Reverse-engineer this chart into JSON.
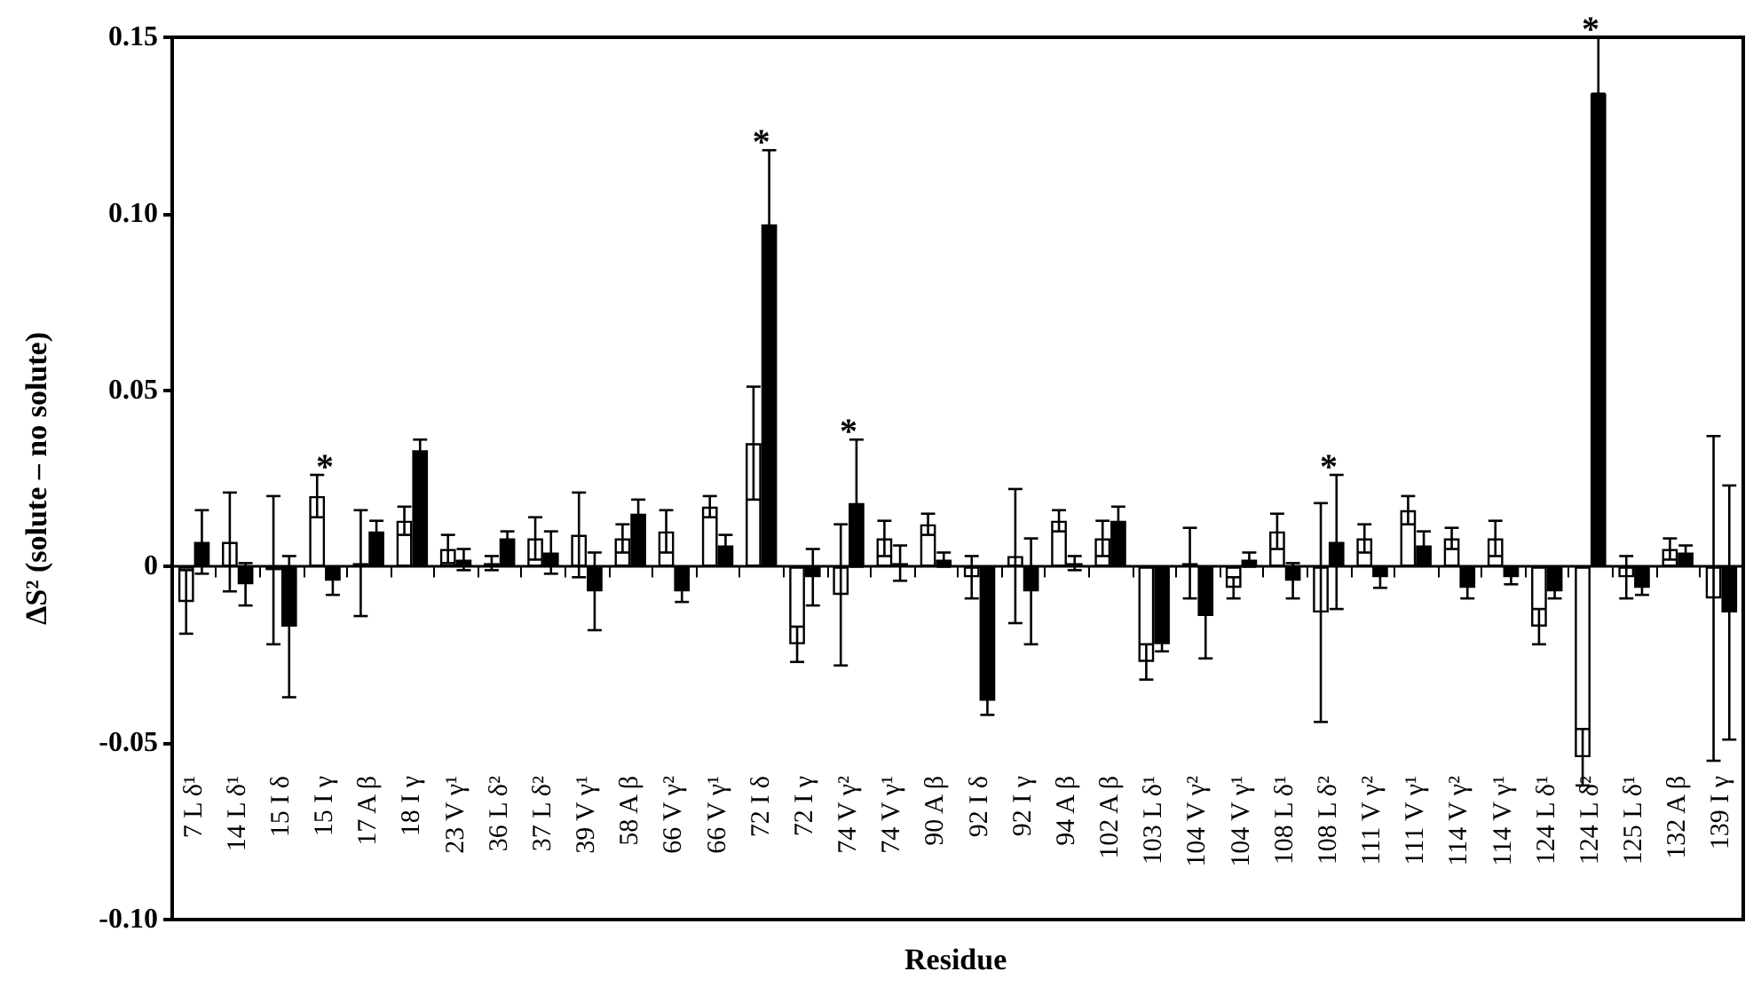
{
  "chart_data": {
    "type": "bar",
    "xlabel": "Residue",
    "ylabel": "ΔS² (solute – no solute)",
    "categories": [
      "7 L δ¹",
      "14 L δ¹",
      "15 I δ",
      "15 I γ",
      "17 A β",
      "18 I γ",
      "23 V γ¹",
      "36 L δ²",
      "37 L δ²",
      "39 V γ¹",
      "58 A β",
      "66 V γ²",
      "66 V γ¹",
      "72 I δ",
      "72 I γ",
      "74 V γ²",
      "74 V γ¹",
      "90 A β",
      "92 I δ",
      "92 I γ",
      "94 A β",
      "102 A β",
      "103 L δ¹",
      "104 V γ²",
      "104 V γ¹",
      "108 L δ¹",
      "108 L δ²",
      "111 V γ²",
      "111 V γ¹",
      "114 V γ²",
      "114 V γ¹",
      "124 L δ¹",
      "124 L δ²",
      "125 L δ¹",
      "132 A β",
      "139 I γ"
    ],
    "series": [
      {
        "color": "#ffffff",
        "values": [
          -0.01,
          0.007,
          -0.001,
          0.02,
          0.001,
          0.013,
          0.005,
          0.001,
          0.008,
          0.009,
          0.008,
          0.01,
          0.017,
          0.035,
          -0.022,
          -0.008,
          0.008,
          0.012,
          -0.003,
          0.003,
          0.013,
          0.008,
          -0.027,
          0.001,
          -0.006,
          0.01,
          -0.013,
          0.008,
          0.016,
          0.008,
          0.008,
          -0.017,
          -0.054,
          -0.003,
          0.005,
          -0.009
        ],
        "errors": [
          0.009,
          0.014,
          0.021,
          0.006,
          0.015,
          0.004,
          0.004,
          0.002,
          0.006,
          0.012,
          0.004,
          0.006,
          0.003,
          0.016,
          0.005,
          0.02,
          0.005,
          0.003,
          0.006,
          0.019,
          0.003,
          0.005,
          0.005,
          0.01,
          0.003,
          0.005,
          0.031,
          0.004,
          0.004,
          0.003,
          0.005,
          0.005,
          0.008,
          0.006,
          0.003,
          0.046
        ]
      },
      {
        "color": "#000000",
        "values": [
          0.007,
          -0.005,
          -0.017,
          -0.004,
          0.01,
          0.033,
          0.002,
          0.008,
          0.004,
          -0.007,
          0.015,
          -0.007,
          0.006,
          0.097,
          -0.003,
          0.018,
          0.001,
          0.002,
          -0.038,
          -0.007,
          0.001,
          0.013,
          -0.022,
          -0.014,
          0.002,
          -0.004,
          0.007,
          -0.003,
          0.006,
          -0.006,
          -0.003,
          -0.007,
          0.134,
          -0.006,
          0.004,
          -0.013
        ],
        "errors": [
          0.009,
          0.006,
          0.02,
          0.004,
          0.003,
          0.003,
          0.003,
          0.002,
          0.006,
          0.011,
          0.004,
          0.003,
          0.003,
          0.021,
          0.008,
          0.018,
          0.005,
          0.002,
          0.004,
          0.015,
          0.002,
          0.004,
          0.002,
          0.012,
          0.002,
          0.005,
          0.019,
          0.003,
          0.004,
          0.003,
          0.002,
          0.002,
          [
            0.134,
            0.15
          ],
          0.002,
          0.002,
          0.036
        ]
      }
    ],
    "ylim": [
      -0.1,
      0.15
    ],
    "yticks": [
      {
        "value": -0.1,
        "label": "-0.10"
      },
      -0.05,
      0,
      0.05,
      {
        "value": 0.1,
        "label": "0.10"
      },
      0.15
    ],
    "annotations": [
      {
        "text": "*",
        "x": "15 I γ",
        "y": 0.026
      },
      {
        "text": "*",
        "x": "72 I δ",
        "y": 0.118
      },
      {
        "text": "*",
        "x": "74 V γ²",
        "y": 0.036
      },
      {
        "text": "*",
        "x": "108 L δ²",
        "y": 0.026
      },
      {
        "text": "*",
        "x": "124 L δ²",
        "y": 0.15
      }
    ]
  }
}
